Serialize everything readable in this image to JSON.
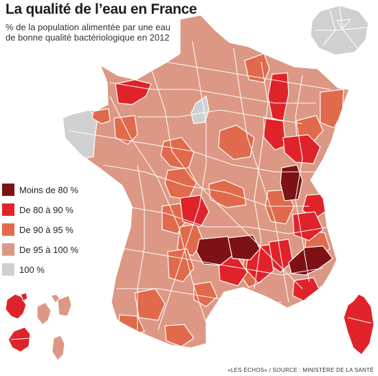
{
  "title": "La qualité de l’eau en France",
  "subtitle": "% de la population alimentée par une eau de bonne qualité bactériologique en 2012",
  "source": "«LES ÉCHOS» / SOURCE : MINISTÈRE DE LA SANTÉ",
  "colors": {
    "c80": "#7d1115",
    "c80_90": "#e0232a",
    "c90_95": "#e06a4b",
    "c95_100": "#dc9884",
    "c100": "#d0d0d2",
    "border": "#ffffff"
  },
  "legend": [
    {
      "label": "Moins de 80 %",
      "color_key": "c80"
    },
    {
      "label": "De 80 à 90 %",
      "color_key": "c80_90"
    },
    {
      "label": "De 90 à 95 %",
      "color_key": "c90_95"
    },
    {
      "label": "De 95 à 100 %",
      "color_key": "c95_100"
    },
    {
      "label": "100 %",
      "color_key": "c100"
    }
  ]
}
